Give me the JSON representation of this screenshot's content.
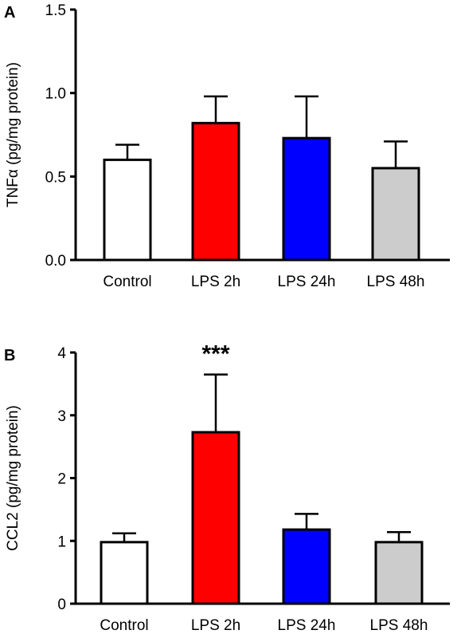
{
  "chart_data": [
    {
      "panel_label": "A",
      "type": "bar",
      "ylabel": "TNFα (pg/mg protein)",
      "xlabel": "",
      "categories": [
        "Control",
        "LPS 2h",
        "LPS 24h",
        "LPS 48h"
      ],
      "values": [
        0.6,
        0.82,
        0.73,
        0.55
      ],
      "errors": [
        0.09,
        0.16,
        0.25,
        0.16
      ],
      "colors": [
        "#ffffff",
        "#ff0000",
        "#0000ff",
        "#cccccc"
      ],
      "ylim": [
        0,
        1.5
      ],
      "yticks": [
        0.0,
        0.5,
        1.0,
        1.5
      ],
      "ytick_labels": [
        "0.0",
        "0.5",
        "1.0",
        "1.5"
      ],
      "annotations": [],
      "grid": false,
      "legend": "none"
    },
    {
      "panel_label": "B",
      "type": "bar",
      "ylabel": "CCL2 (pg/mg protein)",
      "xlabel": "",
      "categories": [
        "Control",
        "LPS 2h",
        "LPS 24h",
        "LPS 48h"
      ],
      "values": [
        0.98,
        2.73,
        1.18,
        0.98
      ],
      "errors": [
        0.14,
        0.92,
        0.25,
        0.16
      ],
      "colors": [
        "#ffffff",
        "#ff0000",
        "#0000ff",
        "#cccccc"
      ],
      "ylim": [
        0,
        4
      ],
      "yticks": [
        0,
        1,
        2,
        3,
        4
      ],
      "ytick_labels": [
        "0",
        "1",
        "2",
        "3",
        "4"
      ],
      "annotations": [
        {
          "category_index": 1,
          "text": "***"
        }
      ],
      "grid": false,
      "legend": "none"
    }
  ]
}
